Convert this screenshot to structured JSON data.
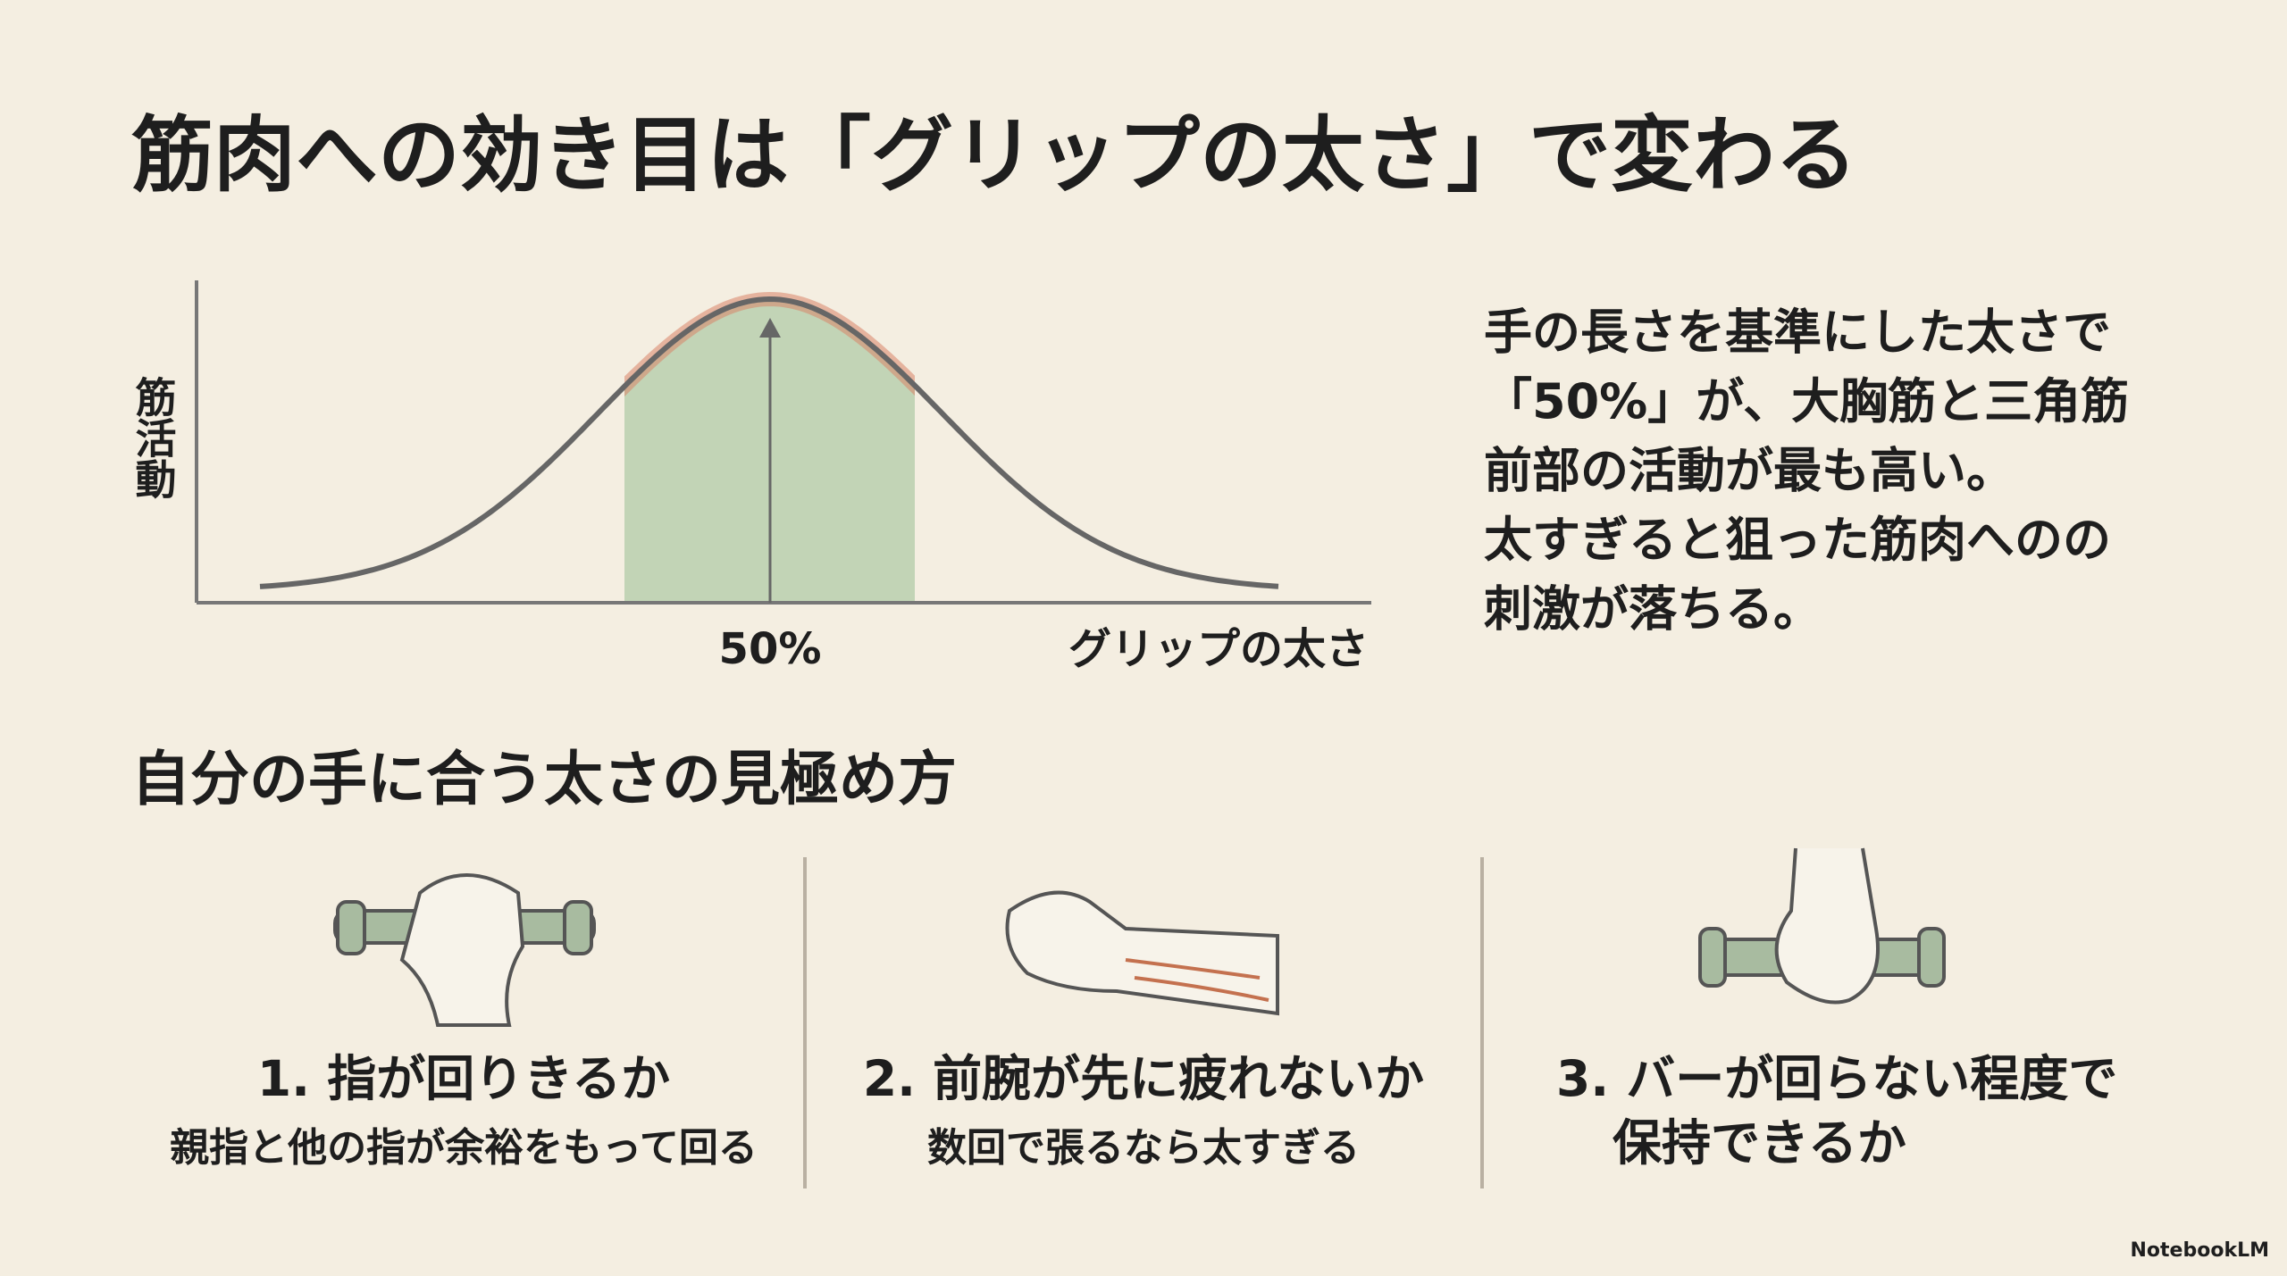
{
  "title": "筋肉への効き目は「グリップの太さ」で変わる",
  "diagram": {
    "y_label": "筋活動",
    "peak_label": "50%",
    "x_label": "グリップの太さ"
  },
  "explanation": [
    "手の長さを基準にした太さで",
    "「50%」が、大胸筋と三角筋",
    "前部の活動が最も高い。",
    "太すぎると狙った筋肉へのの",
    "刺激が落ちる。"
  ],
  "section_title": "自分の手に合う太さの見極め方",
  "steps": [
    {
      "title": "1. 指が回りきるか",
      "description": "親指と他の指が余裕をもって回る"
    },
    {
      "title": "2. 前腕が先に疲れないか",
      "description": "数回で張るなら太すぎる"
    },
    {
      "title": [
        "3. バーが回らない程度で",
        "保持できるか"
      ]
    }
  ],
  "footer": "NotebookLM"
}
